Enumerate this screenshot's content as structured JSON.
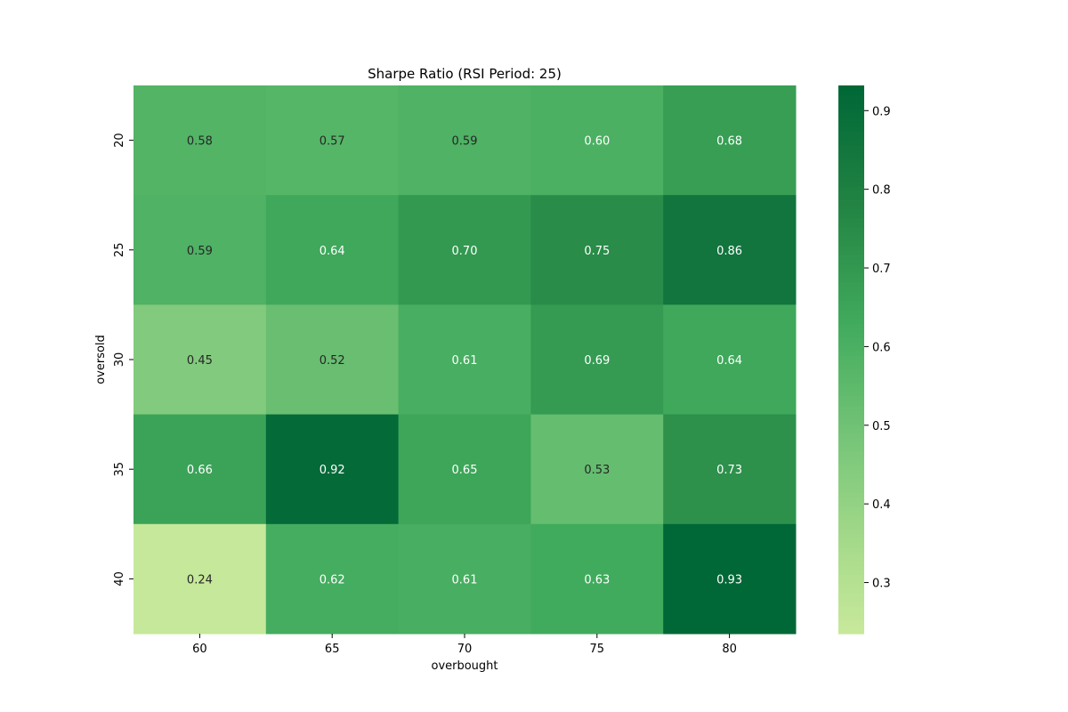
{
  "chart_data": {
    "type": "heatmap",
    "title": "Sharpe Ratio (RSI Period: 25)",
    "xlabel": "overbought",
    "ylabel": "oversold",
    "x_categories": [
      "60",
      "65",
      "70",
      "75",
      "80"
    ],
    "y_categories": [
      "20",
      "25",
      "30",
      "35",
      "40"
    ],
    "values": [
      [
        0.58,
        0.57,
        0.59,
        0.6,
        0.68
      ],
      [
        0.59,
        0.64,
        0.7,
        0.75,
        0.86
      ],
      [
        0.45,
        0.52,
        0.61,
        0.69,
        0.64
      ],
      [
        0.66,
        0.92,
        0.65,
        0.53,
        0.73
      ],
      [
        0.24,
        0.62,
        0.61,
        0.63,
        0.93
      ]
    ],
    "labels": [
      [
        "0.58",
        "0.57",
        "0.59",
        "0.60",
        "0.68"
      ],
      [
        "0.59",
        "0.64",
        "0.70",
        "0.75",
        "0.86"
      ],
      [
        "0.45",
        "0.52",
        "0.61",
        "0.69",
        "0.64"
      ],
      [
        "0.66",
        "0.92",
        "0.65",
        "0.53",
        "0.73"
      ],
      [
        "0.24",
        "0.62",
        "0.61",
        "0.63",
        "0.93"
      ]
    ],
    "colormap": "YlGn",
    "colorbar": {
      "vmin": 0.235,
      "vmax": 0.932,
      "ticks": [
        0.3,
        0.4,
        0.5,
        0.6,
        0.7,
        0.8,
        0.9
      ],
      "tick_labels": [
        "0.3",
        "0.4",
        "0.5",
        "0.6",
        "0.7",
        "0.8",
        "0.9"
      ]
    },
    "grid": false,
    "annotations": true
  }
}
